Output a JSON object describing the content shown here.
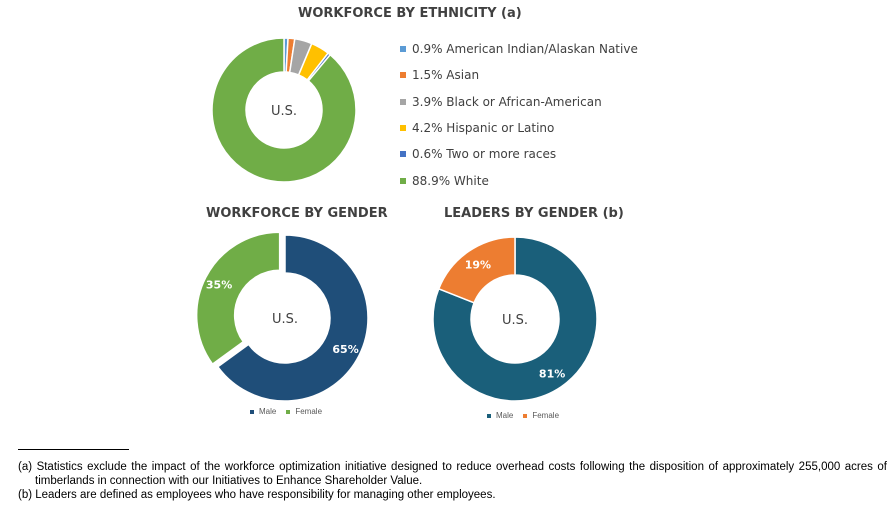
{
  "chart_data": [
    {
      "type": "pie",
      "title": "WORKFORCE BY ETHNICITY (a)",
      "center_label": "U.S.",
      "series": [
        {
          "label": "0.9%  American Indian/Alaskan Native",
          "value": 0.9,
          "color": "#5B9BD5"
        },
        {
          "label": "1.5%  Asian",
          "value": 1.5,
          "color": "#ED7D31"
        },
        {
          "label": "3.9%  Black or African-American",
          "value": 3.9,
          "color": "#A5A5A5"
        },
        {
          "label": "4.2%  Hispanic or Latino",
          "value": 4.2,
          "color": "#FFC000"
        },
        {
          "label": "0.6%  Two or more races",
          "value": 0.6,
          "color": "#4472C4"
        },
        {
          "label": "88.9%  White",
          "value": 88.9,
          "color": "#70AD47"
        }
      ],
      "legend_position": "right"
    },
    {
      "type": "pie",
      "title": "WORKFORCE BY GENDER",
      "center_label": "U.S.",
      "series": [
        {
          "name": "Male",
          "value": 65,
          "label": "65%",
          "color": "#1F4E79"
        },
        {
          "name": "Female",
          "value": 35,
          "label": "35%",
          "color": "#70AD47"
        }
      ],
      "legend_position": "bottom"
    },
    {
      "type": "pie",
      "title": "LEADERS BY GENDER (b)",
      "center_label": "U.S.",
      "series": [
        {
          "name": "Male",
          "value": 81,
          "label": "81%",
          "color": "#1A5F7A"
        },
        {
          "name": "Female",
          "value": 19,
          "label": "19%",
          "color": "#ED7D31"
        }
      ],
      "legend_position": "bottom"
    }
  ],
  "footnotes": {
    "a": "(a) Statistics exclude the impact of the workforce optimization initiative designed to reduce overhead costs following the disposition of approximately 255,000 acres of timberlands in connection with our Initiatives to Enhance Shareholder Value.",
    "b": "(b) Leaders are defined as employees who have responsibility for managing other employees."
  }
}
